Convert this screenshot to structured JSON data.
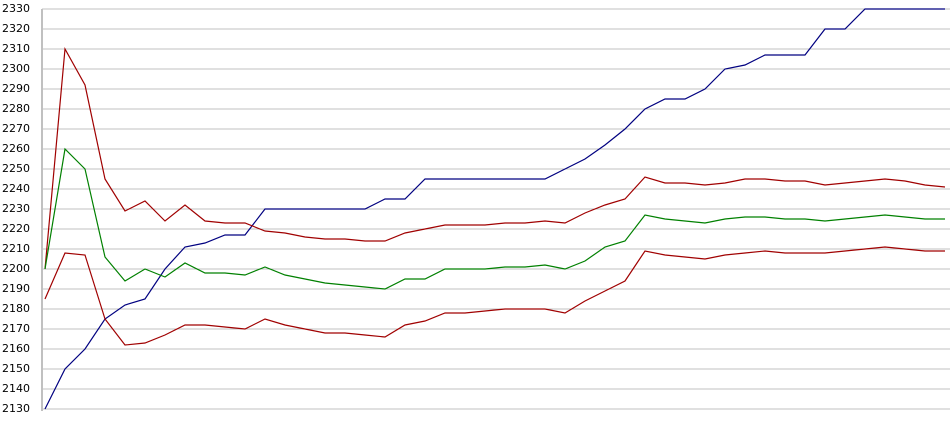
{
  "chart_data": {
    "type": "line",
    "categories": [
      null,
      null,
      null,
      null,
      null,
      null,
      null,
      null,
      null,
      null,
      null,
      null,
      null,
      null,
      null,
      null,
      null,
      null,
      null,
      null,
      null,
      null,
      null,
      null,
      null,
      null,
      null,
      null,
      null,
      null,
      null,
      null,
      null,
      null,
      null,
      null,
      null,
      null,
      null,
      null,
      null,
      null,
      null,
      null,
      null,
      null
    ],
    "ylim": [
      2130,
      2330
    ],
    "yticks": [
      2130,
      2140,
      2150,
      2160,
      2170,
      2180,
      2190,
      2200,
      2210,
      2220,
      2230,
      2240,
      2250,
      2260,
      2270,
      2280,
      2290,
      2300,
      2310,
      2320,
      2330
    ],
    "grid": true,
    "series": [
      {
        "color": "#000080",
        "values": [
          2130,
          2150,
          2160,
          2175,
          2182,
          2185,
          2200,
          2211,
          2213,
          2217,
          2217,
          2230,
          2230,
          2230,
          2230,
          2230,
          2230,
          2235,
          2235,
          2245,
          2245,
          2245,
          2245,
          2245,
          2245,
          2245,
          2250,
          2255,
          2262,
          2270,
          2280,
          2285,
          2285,
          2290,
          2300,
          2302,
          2307,
          2307,
          2307,
          2320,
          2320,
          2330,
          2330,
          2330,
          2330,
          2330
        ]
      },
      {
        "color": "#a00000",
        "values": [
          2200,
          2310,
          2292,
          2245,
          2229,
          2234,
          2224,
          2232,
          2224,
          2223,
          2223,
          2219,
          2218,
          2216,
          2215,
          2215,
          2214,
          2214,
          2218,
          2220,
          2222,
          2222,
          2222,
          2223,
          2223,
          2224,
          2223,
          2228,
          2232,
          2235,
          2246,
          2243,
          2243,
          2242,
          2243,
          2245,
          2245,
          2244,
          2244,
          2242,
          2243,
          2244,
          2245,
          2244,
          2242,
          2241
        ]
      },
      {
        "color": "#008000",
        "values": [
          2200,
          2260,
          2250,
          2206,
          2194,
          2200,
          2196,
          2203,
          2198,
          2198,
          2197,
          2201,
          2197,
          2195,
          2193,
          2192,
          2191,
          2190,
          2195,
          2195,
          2200,
          2200,
          2200,
          2201,
          2201,
          2202,
          2200,
          2204,
          2211,
          2214,
          2227,
          2225,
          2224,
          2223,
          2225,
          2226,
          2226,
          2225,
          2225,
          2224,
          2225,
          2226,
          2227,
          2226,
          2225,
          2225
        ]
      },
      {
        "color": "#a00000",
        "values": [
          2185,
          2208,
          2207,
          2175,
          2162,
          2163,
          2167,
          2172,
          2172,
          2171,
          2170,
          2175,
          2172,
          2170,
          2168,
          2168,
          2167,
          2166,
          2172,
          2174,
          2178,
          2178,
          2179,
          2180,
          2180,
          2180,
          2178,
          2184,
          2189,
          2194,
          2209,
          2207,
          2206,
          2205,
          2207,
          2208,
          2209,
          2208,
          2208,
          2208,
          2209,
          2210,
          2211,
          2210,
          2209,
          2209
        ]
      }
    ]
  }
}
